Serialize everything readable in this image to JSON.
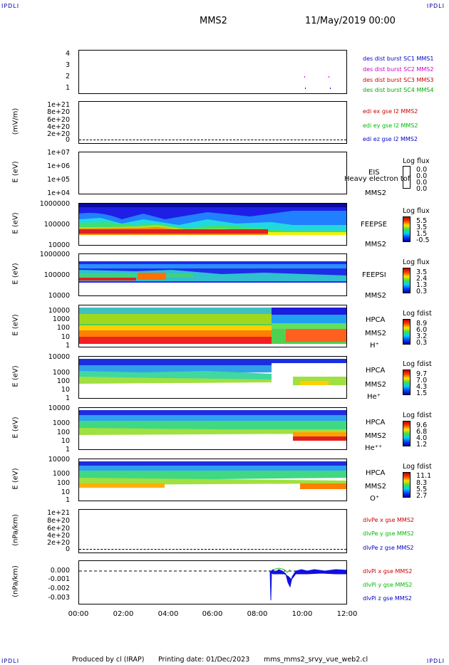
{
  "corner_label": "IPDLI",
  "header": {
    "mission": "MMS2",
    "datetime": "11/May/2019 00:00"
  },
  "footer": {
    "producer": "Produced by cl (IRAP)",
    "printing": "Printing date: 01/Dec/2023",
    "file": "mms_mms2_srvy_vue_web2.cl"
  },
  "x_axis": {
    "ticks": [
      "00:00",
      "02:00",
      "04:00",
      "06:00",
      "08:00",
      "10:00",
      "12:00"
    ]
  },
  "colors": {
    "mms1": "#0000cc",
    "mms2": "#cc00cc",
    "mms3": "#cc0000",
    "mms4": "#00aa00",
    "red": "#cc0000",
    "green": "#00bb00",
    "blue": "#0000cc"
  },
  "panels": {
    "p1": {
      "yticks": [
        "4",
        "3",
        "2",
        "1"
      ],
      "legend": [
        "des dist burst SC1 MMS1",
        "des dist burst SC2 MMS2",
        "des dist burst SC3 MMS3",
        "des dist burst SC4 MMS4"
      ]
    },
    "p2": {
      "ylabel": "(mV/m)",
      "yticks": [
        "1e+21",
        "8e+20",
        "6e+20",
        "4e+20",
        "2e+20",
        "0"
      ],
      "legend": [
        "edi ex gse l2 MMS2",
        "edi ey gse l2 MMS2",
        "edi ez gse l2 MMS2"
      ]
    },
    "p3": {
      "ylabel": "E (eV)",
      "yticks": [
        "1e+07",
        "1e+06",
        "1e+05",
        "1e+04"
      ],
      "inst": "EIS",
      "species": "Heavy electron tof",
      "sc": "MMS2",
      "cb_title": "Log flux",
      "cb_vals": [
        "0.0",
        "0.0",
        "0.0",
        "0.0"
      ]
    },
    "p4": {
      "ylabel": "E (eV)",
      "yticks": [
        "1000000",
        "100000",
        "10000"
      ],
      "inst": "FEEPSE",
      "sc": "MMS2",
      "cb_title": "Log flux",
      "cb_vals": [
        "5.5",
        "3.5",
        "1.5",
        "-0.5"
      ]
    },
    "p5": {
      "ylabel": "E (eV)",
      "yticks": [
        "1000000",
        "100000",
        "10000"
      ],
      "inst": "FEEPSI",
      "sc": "MMS2",
      "cb_title": "Log flux",
      "cb_vals": [
        "3.5",
        "2.4",
        "1.3",
        "0.3"
      ]
    },
    "p6": {
      "ylabel": "E (eV)",
      "yticks": [
        "10000",
        "1000",
        "100",
        "10",
        "1"
      ],
      "inst": "HPCA",
      "sc": "MMS2",
      "ion": "H⁺",
      "cb_title": "Log fdist",
      "cb_vals": [
        "8.9",
        "6.0",
        "3.2",
        "0.3"
      ]
    },
    "p7": {
      "ylabel": "E (eV)",
      "yticks": [
        "10000",
        "1000",
        "100",
        "10",
        "1"
      ],
      "inst": "HPCA",
      "sc": "MMS2",
      "ion": "He⁺",
      "cb_title": "Log fdist",
      "cb_vals": [
        "9.7",
        "7.0",
        "4.3",
        "1.5"
      ]
    },
    "p8": {
      "ylabel": "E (eV)",
      "yticks": [
        "10000",
        "1000",
        "100",
        "10",
        "1"
      ],
      "inst": "HPCA",
      "sc": "MMS2",
      "ion": "He⁺⁺",
      "cb_title": "Log fdist",
      "cb_vals": [
        "9.6",
        "6.8",
        "4.0",
        "1.2"
      ]
    },
    "p9": {
      "ylabel": "E (eV)",
      "yticks": [
        "10000",
        "1000",
        "100",
        "10",
        "1"
      ],
      "inst": "HPCA",
      "sc": "MMS2",
      "ion": "O⁺",
      "cb_title": "Log fdist",
      "cb_vals": [
        "11.1",
        "8.3",
        "5.5",
        "2.7"
      ]
    },
    "p10": {
      "ylabel": "(nPa/km)",
      "yticks": [
        "1e+21",
        "8e+20",
        "6e+20",
        "4e+20",
        "2e+20",
        "0"
      ],
      "legend": [
        "dlvPe x gse MMS2",
        "dlvPe y gse MMS2",
        "dlvPe z gse MMS2"
      ]
    },
    "p11": {
      "ylabel": "(nPa/km)",
      "yticks": [
        "0.000",
        "-0.001",
        "-0.002",
        "-0.003"
      ],
      "legend": [
        "dlvPi x gse MMS2",
        "dlvPi y gse MMS2",
        "dlvPi z gse MMS2"
      ]
    }
  },
  "chart_data": [
    {
      "type": "scatter",
      "series": [
        {
          "name": "des dist burst SC2 MMS2",
          "x": [
            "10:05",
            "11:10"
          ],
          "y": [
            2,
            2
          ]
        },
        {
          "name": "des dist burst SC1 MMS1",
          "x": [
            "10:05",
            "11:10"
          ],
          "y": [
            1,
            1
          ]
        }
      ],
      "ylim": [
        0.5,
        4.5
      ]
    },
    {
      "type": "line",
      "ylabel": "(mV/m)",
      "ylim": [
        0,
        1e+21
      ],
      "series": [
        {
          "name": "edi ex gse l2 MMS2",
          "x": [
            "00:00",
            "12:00"
          ],
          "y": [
            0,
            0
          ]
        }
      ]
    },
    {
      "type": "heatmap",
      "ylabel": "E (eV)",
      "xlabel": "",
      "ylim": [
        10000.0,
        10000000.0
      ],
      "title": "EIS Heavy electron tof"
    },
    {
      "type": "heatmap",
      "ylabel": "E (eV)",
      "ylim": [
        10000.0,
        1000000.0
      ],
      "title": "FEEPSE"
    },
    {
      "type": "heatmap",
      "ylabel": "E (eV)",
      "ylim": [
        10000.0,
        1000000.0
      ],
      "title": "FEEPSI"
    },
    {
      "type": "heatmap",
      "ylabel": "E (eV)",
      "ylim": [
        1,
        10000.0
      ],
      "title": "HPCA H+"
    },
    {
      "type": "heatmap",
      "ylabel": "E (eV)",
      "ylim": [
        1,
        10000.0
      ],
      "title": "HPCA He+"
    },
    {
      "type": "heatmap",
      "ylabel": "E (eV)",
      "ylim": [
        1,
        10000.0
      ],
      "title": "HPCA He++"
    },
    {
      "type": "heatmap",
      "ylabel": "E (eV)",
      "ylim": [
        1,
        10000.0
      ],
      "title": "HPCA O+"
    },
    {
      "type": "line",
      "ylabel": "(nPa/km)",
      "ylim": [
        0,
        1e+21
      ],
      "series": [
        {
          "name": "dlvPe x gse MMS2",
          "x": [
            "00:00",
            "12:00"
          ],
          "y": [
            0,
            0
          ]
        }
      ]
    },
    {
      "type": "line",
      "ylabel": "(nPa/km)",
      "ylim": [
        -0.0035,
        0.0004
      ],
      "series": [
        {
          "name": "dlvPi x gse MMS2",
          "x": [
            "08:30",
            "09:00",
            "09:30",
            "10:00",
            "11:00",
            "12:00"
          ],
          "y": [
            -0.0001,
            -0.0002,
            -0.0006,
            -0.0002,
            -0.0001,
            -0.0001
          ]
        }
      ]
    }
  ]
}
